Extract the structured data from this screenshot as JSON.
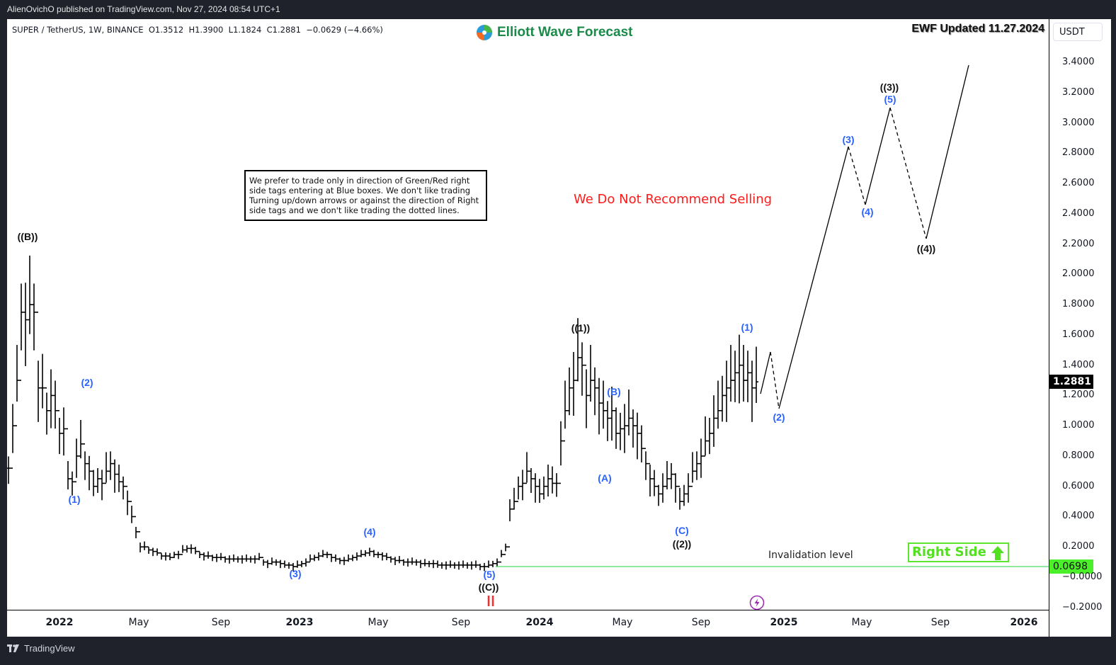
{
  "header": {
    "published": "AlienOvichO published on TradingView.com, Nov 27, 2024 08:54 UTC+1"
  },
  "legend": {
    "symbol": "SUPER / TetherUS, 1W, BINANCE",
    "open": "O1.3512",
    "high": "H1.3900",
    "low": "L1.1824",
    "close": "C1.2881",
    "change": "−0.0629 (−4.66%)"
  },
  "brand": {
    "name": "Elliott Wave Forecast",
    "color": "#1a8a4a"
  },
  "update_stamp": "EWF Updated 11.27.2024",
  "currency": "USDT",
  "note": "We prefer to trade only in direction of Green/Red right side tags entering at Blue boxes. We don't like trading Turning up/down arrows or against the direction of Right side tags and we don't like trading the dotted lines.",
  "warning": "We Do Not Recommend Selling",
  "invalidation": {
    "label": "Invalidation level",
    "value": "0.0698",
    "color": "#4cf02a"
  },
  "right_side": {
    "label": "Right Side",
    "color": "#52e020"
  },
  "current_price": "1.2881",
  "footer": {
    "brand": "TradingView"
  },
  "y_ticks": [
    "3.4000",
    "3.2000",
    "3.0000",
    "2.8000",
    "2.6000",
    "2.4000",
    "2.2000",
    "2.0000",
    "1.8000",
    "1.6000",
    "1.4000",
    "1.2000",
    "1.0000",
    "0.8000",
    "0.6000",
    "0.4000",
    "0.2000",
    "−0.0000",
    "−0.2000"
  ],
  "x_ticks": [
    {
      "label": "2022",
      "bold": true
    },
    {
      "label": "May",
      "bold": false
    },
    {
      "label": "Sep",
      "bold": false
    },
    {
      "label": "2023",
      "bold": true
    },
    {
      "label": "May",
      "bold": false
    },
    {
      "label": "Sep",
      "bold": false
    },
    {
      "label": "2024",
      "bold": true
    },
    {
      "label": "May",
      "bold": false
    },
    {
      "label": "Sep",
      "bold": false
    },
    {
      "label": "2025",
      "bold": true
    },
    {
      "label": "May",
      "bold": false
    },
    {
      "label": "Sep",
      "bold": false
    },
    {
      "label": "2026",
      "bold": true
    }
  ],
  "chart_data": {
    "type": "line",
    "title": "SUPER / TetherUS, 1W, BINANCE — Elliott Wave count",
    "xlabel": "",
    "ylabel": "USDT",
    "ylim": [
      -0.2,
      3.5
    ],
    "grid": false,
    "ohlc_last": {
      "open": 1.3512,
      "high": 1.39,
      "low": 1.1824,
      "close": 1.2881,
      "change": -0.0629,
      "change_pct": -4.66
    },
    "wave_labels": [
      {
        "label": "((B))",
        "date": "2021-12",
        "price": 2.19,
        "color": "black"
      },
      {
        "label": "(1)",
        "date": "2022-02",
        "price": 0.57,
        "color": "blue"
      },
      {
        "label": "(2)",
        "date": "2022-03",
        "price": 1.23,
        "color": "blue"
      },
      {
        "label": "(3)",
        "date": "2022-12",
        "price": 0.08,
        "color": "blue"
      },
      {
        "label": "(4)",
        "date": "2023-04",
        "price": 0.25,
        "color": "blue"
      },
      {
        "label": "(5)",
        "date": "2023-10",
        "price": 0.07,
        "color": "blue"
      },
      {
        "label": "((C))",
        "date": "2023-10",
        "price": 0.07,
        "color": "black"
      },
      {
        "label": "((1))",
        "date": "2024-03",
        "price": 1.6,
        "color": "black"
      },
      {
        "label": "(A)",
        "date": "2024-04",
        "price": 0.7,
        "color": "blue"
      },
      {
        "label": "(B)",
        "date": "2024-04",
        "price": 1.22,
        "color": "blue"
      },
      {
        "label": "(C)",
        "date": "2024-08",
        "price": 0.37,
        "color": "blue"
      },
      {
        "label": "((2))",
        "date": "2024-08",
        "price": 0.37,
        "color": "black"
      },
      {
        "label": "(1)",
        "date": "2024-11",
        "price": 1.6,
        "color": "blue"
      },
      {
        "label": "(2)",
        "date": "2024-12",
        "price": 1.1,
        "color": "blue"
      },
      {
        "label": "(3)",
        "date": "2025-04",
        "price": 2.84,
        "color": "blue"
      },
      {
        "label": "(4)",
        "date": "2025-05",
        "price": 2.47,
        "color": "blue"
      },
      {
        "label": "(5)",
        "date": "2025-06",
        "price": 3.1,
        "color": "blue"
      },
      {
        "label": "((3))",
        "date": "2025-06",
        "price": 3.1,
        "color": "black"
      },
      {
        "label": "((4))",
        "date": "2025-08",
        "price": 2.24,
        "color": "black"
      }
    ],
    "projection_path": [
      {
        "date": "2024-11",
        "price": 1.22,
        "style": "solid"
      },
      {
        "date": "2024-12",
        "price": 1.49,
        "style": "solid"
      },
      {
        "date": "2024-12",
        "price": 1.1,
        "style": "dashed"
      },
      {
        "date": "2025-04",
        "price": 2.84,
        "style": "solid"
      },
      {
        "date": "2025-05",
        "price": 2.47,
        "style": "dashed"
      },
      {
        "date": "2025-06",
        "price": 3.1,
        "style": "solid"
      },
      {
        "date": "2025-08",
        "price": 2.24,
        "style": "dashed"
      },
      {
        "date": "2025-11",
        "price": 3.38,
        "style": "solid"
      }
    ],
    "invalidation_level": 0.0698,
    "current_price": 1.2881,
    "x_tick_labels": [
      "2022",
      "May",
      "Sep",
      "2023",
      "May",
      "Sep",
      "2024",
      "May",
      "Sep",
      "2025",
      "May",
      "Sep",
      "2026"
    ],
    "y_tick_labels": [
      3.4,
      3.2,
      3.0,
      2.8,
      2.6,
      2.4,
      2.2,
      2.0,
      1.8,
      1.6,
      1.4,
      1.2,
      1.0,
      0.8,
      0.6,
      0.4,
      0.2,
      0.0,
      -0.2
    ],
    "annotations": [
      "We Do Not Recommend Selling",
      "Invalidation level",
      "Right Side",
      "EWF Updated 11.27.2024"
    ]
  }
}
